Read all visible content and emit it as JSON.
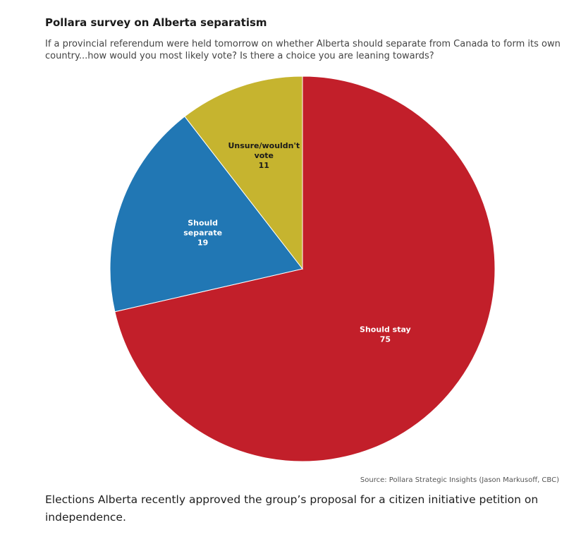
{
  "chart_data": {
    "type": "pie",
    "title": "Pollara survey on Alberta separatism",
    "subtitle": "If a provincial referendum were held tomorrow on whether Alberta should separate from Canada to form its own country...how would you most likely vote? Is there a choice you are leaning towards?",
    "slices": [
      {
        "name": "Should stay",
        "value": 75,
        "color": "#c21f2a",
        "label_color": "#ffffff"
      },
      {
        "name": "Should separate",
        "value": 19,
        "color": "#2177b4",
        "label_color": "#ffffff"
      },
      {
        "name": "Unsure/wouldn't vote",
        "value": 11,
        "color": "#c6b42f",
        "label_color": "#1a1a1a"
      }
    ],
    "start": "12 o'clock",
    "direction": "clockwise",
    "source": "Source: Pollara Strategic Insights (Jason Markusoff, CBC)"
  },
  "article": {
    "paragraph": "Elections Alberta recently approved the group’s proposal for a citizen initiative petition on independence."
  }
}
